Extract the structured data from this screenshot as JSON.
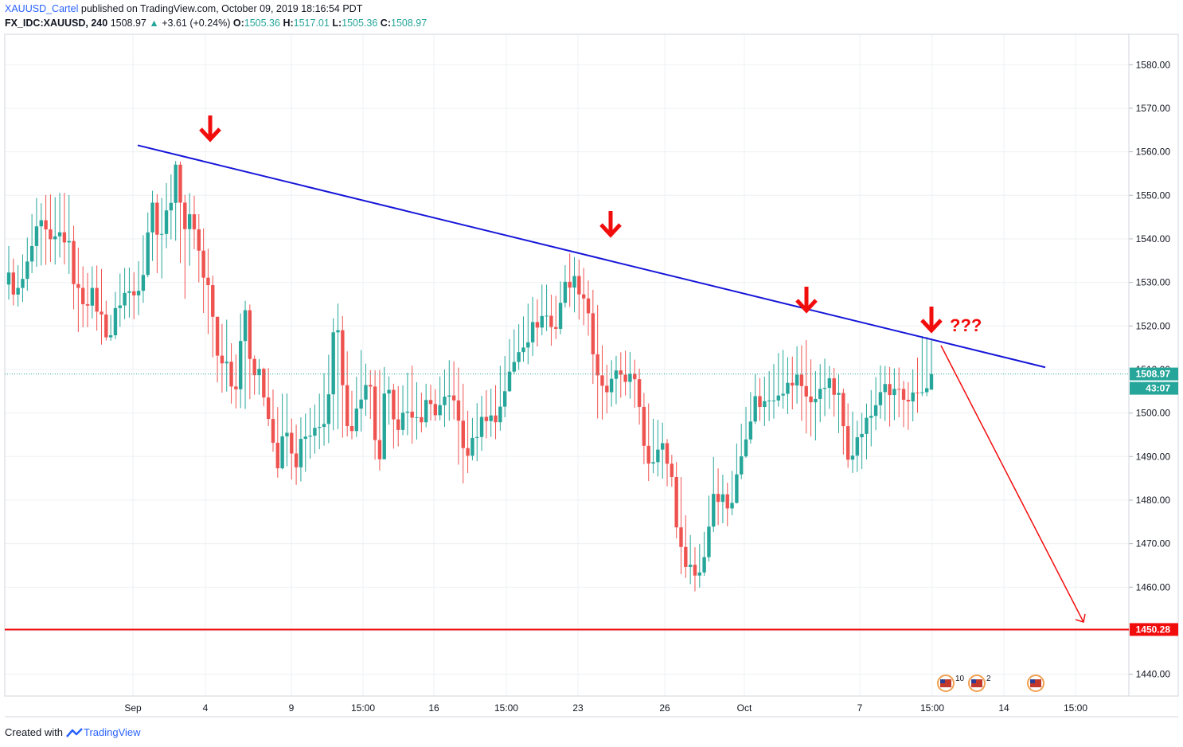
{
  "header": {
    "author": "XAUUSD_Cartel",
    "published_text": "published on TradingView.com, October 09, 2019 18:16:54 PDT",
    "symbol": "FX_IDC:XAUUSD, 240",
    "last": "1508.97",
    "change_arrow": "▲",
    "change": "+3.61 (+0.24%)",
    "o_label": "O:",
    "o_value": "1505.36",
    "h_label": "H:",
    "h_value": "1517.01",
    "l_label": "L:",
    "l_value": "1505.36",
    "c_label": "C:",
    "c_value": "1508.97"
  },
  "footer": {
    "created_with": "Created with",
    "brand": "TradingView"
  },
  "colors": {
    "up": "#26a69a",
    "down": "#ef5350",
    "trendline": "#1515d9",
    "annotation": "#f20d0d",
    "support": "#f20d0d",
    "grid": "#eef0f3",
    "axis_text": "#131722"
  },
  "chart_data": {
    "type": "candlestick",
    "y_axis": {
      "min": 1435,
      "max": 1587,
      "ticks": [
        "1580.00",
        "1570.00",
        "1560.00",
        "1550.00",
        "1540.00",
        "1530.00",
        "1520.00",
        "1510.00",
        "1500.00",
        "1490.00",
        "1480.00",
        "1470.00",
        "1460.00",
        "1450.00",
        "1440.00"
      ]
    },
    "x_axis": {
      "labels": [
        "Sep",
        "4",
        "9",
        "15:00",
        "16",
        "15:00",
        "23",
        "26",
        "Oct",
        "7",
        "15:00",
        "14",
        "15:00"
      ]
    },
    "price_labels": {
      "last_price": "1508.97",
      "countdown": "43:07",
      "support": "1450.28"
    },
    "trendline": {
      "start_price": 1561.5,
      "end_price": 1510.5
    },
    "support_level": 1450.28,
    "arrows_count": 4,
    "question_text": "???",
    "projection_target": 1452,
    "events": [
      {
        "icon": "us-flag-icon",
        "badge": "10"
      },
      {
        "icon": "us-flag-icon",
        "badge": "2"
      },
      {
        "icon": "us-flag-icon",
        "badge": ""
      }
    ],
    "anchors": [
      [
        1531,
        1537,
        1527
      ],
      [
        1527,
        1532,
        1525
      ],
      [
        1532,
        1537,
        1528
      ],
      [
        1540,
        1548,
        1535
      ],
      [
        1543,
        1548,
        1535
      ],
      [
        1538,
        1550,
        1535
      ],
      [
        1541,
        1549,
        1536
      ],
      [
        1540,
        1551,
        1535
      ],
      [
        1528,
        1540,
        1520
      ],
      [
        1526,
        1531,
        1520
      ],
      [
        1527,
        1533,
        1522
      ],
      [
        1522,
        1533,
        1517
      ],
      [
        1517,
        1521,
        1517
      ],
      [
        1525,
        1530,
        1520
      ],
      [
        1528,
        1534,
        1522
      ],
      [
        1527,
        1531,
        1522
      ],
      [
        1533,
        1539,
        1525
      ],
      [
        1549,
        1551,
        1537
      ],
      [
        1540,
        1548,
        1530
      ],
      [
        1547,
        1553,
        1540
      ],
      [
        1556,
        1557,
        1541
      ],
      [
        1543,
        1549,
        1527
      ],
      [
        1545,
        1550,
        1540
      ],
      [
        1533,
        1543,
        1526
      ],
      [
        1528,
        1536,
        1517
      ],
      [
        1510,
        1520,
        1506
      ],
      [
        1512,
        1520,
        1505
      ],
      [
        1503,
        1512,
        1501
      ],
      [
        1527,
        1528,
        1502
      ],
      [
        1510,
        1513,
        1504
      ],
      [
        1508,
        1511,
        1505
      ],
      [
        1500,
        1509,
        1498
      ],
      [
        1487,
        1500,
        1486
      ],
      [
        1497,
        1505,
        1490
      ],
      [
        1487,
        1496,
        1484
      ],
      [
        1494,
        1498,
        1486
      ],
      [
        1494,
        1500,
        1490
      ],
      [
        1496,
        1504,
        1493
      ],
      [
        1501,
        1511,
        1494
      ],
      [
        1524,
        1525,
        1497
      ],
      [
        1500,
        1520,
        1495
      ],
      [
        1497,
        1502,
        1495
      ],
      [
        1504,
        1513,
        1497
      ],
      [
        1507,
        1510,
        1502
      ],
      [
        1485,
        1508,
        1485
      ],
      [
        1508,
        1510,
        1500
      ],
      [
        1495,
        1505,
        1492
      ],
      [
        1502,
        1506,
        1496
      ],
      [
        1497,
        1510,
        1494
      ],
      [
        1499,
        1504,
        1495
      ],
      [
        1503,
        1506,
        1500
      ],
      [
        1500,
        1505,
        1499
      ],
      [
        1502,
        1510,
        1498
      ],
      [
        1505,
        1512,
        1500
      ],
      [
        1492,
        1508,
        1483
      ],
      [
        1491,
        1497,
        1489
      ],
      [
        1497,
        1502,
        1490
      ],
      [
        1500,
        1505,
        1495
      ],
      [
        1498,
        1506,
        1495
      ],
      [
        1505,
        1512,
        1498
      ],
      [
        1510,
        1518,
        1508
      ],
      [
        1516,
        1520,
        1512
      ],
      [
        1518,
        1525,
        1512
      ],
      [
        1521,
        1526,
        1516
      ],
      [
        1523,
        1530,
        1520
      ],
      [
        1518,
        1525,
        1515
      ],
      [
        1528,
        1531,
        1524
      ],
      [
        1531,
        1536,
        1525
      ],
      [
        1529,
        1534,
        1522
      ],
      [
        1525,
        1530,
        1521
      ],
      [
        1508,
        1527,
        1500
      ],
      [
        1504,
        1510,
        1500
      ],
      [
        1507,
        1512,
        1502
      ],
      [
        1509,
        1514,
        1505
      ],
      [
        1508,
        1513,
        1504
      ],
      [
        1505,
        1511,
        1500
      ],
      [
        1489,
        1502,
        1485
      ],
      [
        1491,
        1498,
        1487
      ],
      [
        1492,
        1497,
        1485
      ],
      [
        1486,
        1490,
        1484
      ],
      [
        1468,
        1487,
        1464
      ],
      [
        1466,
        1472,
        1462
      ],
      [
        1462,
        1468,
        1459
      ],
      [
        1468,
        1472,
        1463
      ],
      [
        1482,
        1490,
        1473
      ],
      [
        1481,
        1485,
        1476
      ],
      [
        1478,
        1483,
        1474
      ],
      [
        1487,
        1495,
        1485
      ],
      [
        1497,
        1502,
        1495
      ],
      [
        1503,
        1508,
        1500
      ],
      [
        1502,
        1507,
        1497
      ],
      [
        1504,
        1510,
        1499
      ],
      [
        1506,
        1514,
        1503
      ],
      [
        1506,
        1512,
        1500
      ],
      [
        1508,
        1514,
        1503
      ],
      [
        1505,
        1516,
        1496
      ],
      [
        1501,
        1509,
        1494
      ],
      [
        1508,
        1512,
        1500
      ],
      [
        1506,
        1510,
        1502
      ],
      [
        1503,
        1508,
        1495
      ],
      [
        1491,
        1502,
        1488
      ],
      [
        1493,
        1497,
        1487
      ],
      [
        1497,
        1500,
        1488
      ],
      [
        1500,
        1505,
        1495
      ],
      [
        1506,
        1510,
        1500
      ],
      [
        1504,
        1510,
        1498
      ],
      [
        1506,
        1510,
        1501
      ],
      [
        1500,
        1505,
        1496
      ],
      [
        1504,
        1510,
        1499
      ],
      [
        1505.36,
        1517.01,
        1505.36
      ],
      [
        1508.97,
        1517.01,
        1505.36
      ]
    ]
  }
}
